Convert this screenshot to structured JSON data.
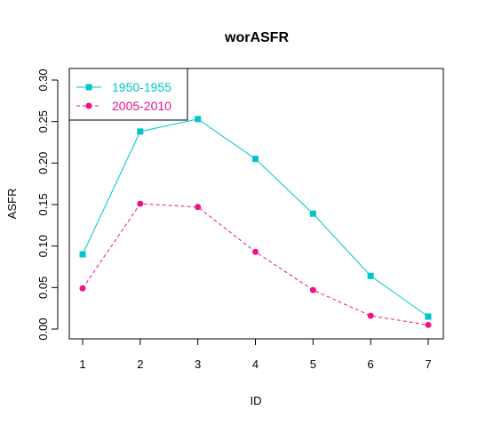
{
  "chart_data": {
    "type": "line",
    "title": "worASFR",
    "xlabel": "ID",
    "ylabel": "ASFR",
    "x": [
      1,
      2,
      3,
      4,
      5,
      6,
      7
    ],
    "xlim": [
      1,
      7
    ],
    "ylim": [
      0,
      0.3
    ],
    "x_ticks": [
      "1",
      "2",
      "3",
      "4",
      "5",
      "6",
      "7"
    ],
    "y_ticks": [
      "0.00",
      "0.05",
      "0.10",
      "0.15",
      "0.20",
      "0.25",
      "0.30"
    ],
    "grid": false,
    "legend_position": "top-left",
    "series": [
      {
        "name": "1950-1955",
        "color": "#00c5cd",
        "line_style": "solid",
        "marker": "square",
        "values": [
          0.09,
          0.238,
          0.253,
          0.205,
          0.139,
          0.064,
          0.015
        ]
      },
      {
        "name": "2005-2010",
        "color": "#ee1289",
        "line_style": "dashed",
        "marker": "circle",
        "values": [
          0.049,
          0.151,
          0.147,
          0.093,
          0.047,
          0.016,
          0.005
        ]
      }
    ]
  }
}
